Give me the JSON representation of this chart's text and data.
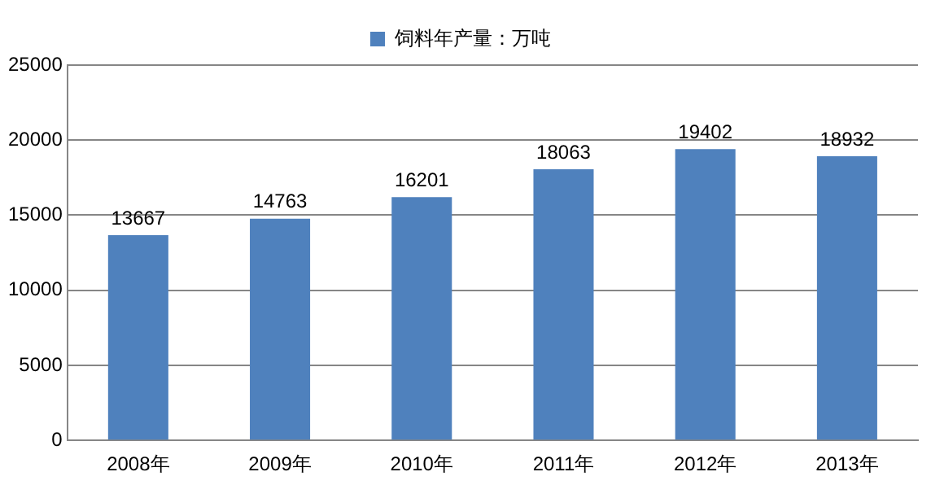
{
  "chart_data": {
    "type": "bar",
    "categories": [
      "2008年",
      "2009年",
      "2010年",
      "2011年",
      "2012年",
      "2013年"
    ],
    "series": [
      {
        "name": "饲料年产量：万吨",
        "color": "#4f81bd",
        "values": [
          13667,
          14763,
          16201,
          18063,
          19402,
          18932
        ]
      }
    ],
    "ylim": [
      0,
      25000
    ],
    "yticks": [
      0,
      5000,
      10000,
      15000,
      20000,
      25000
    ],
    "grid": "y",
    "legend": "top",
    "data_labels": true
  }
}
